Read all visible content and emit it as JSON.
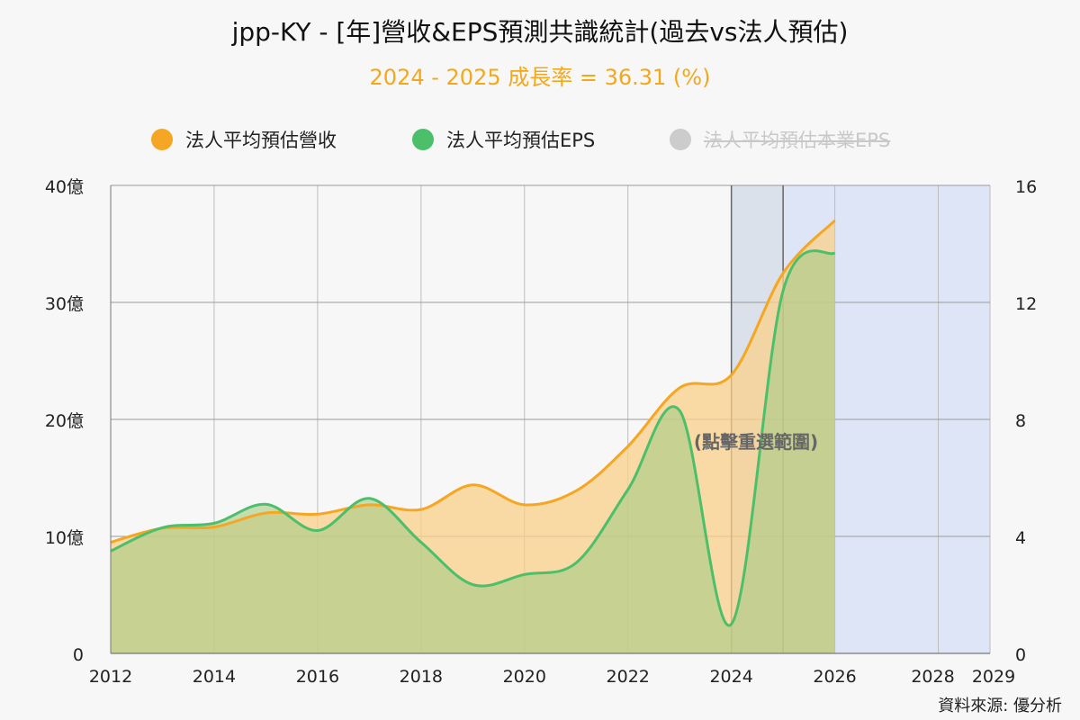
{
  "header": {
    "title": "jpp-KY - [年]營收&EPS預測共識統計(過去vs法人預估)",
    "subtitle": "2024 - 2025 成長率 = 36.31 (%)"
  },
  "legend": {
    "items": [
      {
        "label": "法人平均預估營收",
        "color": "#f5a623",
        "hidden": false
      },
      {
        "label": "法人平均預估EPS",
        "color": "#4cbf6b",
        "hidden": false
      },
      {
        "label": "法人平均預估本業EPS",
        "color": "#cccccc",
        "hidden": true
      }
    ]
  },
  "overlay_text": "(點擊重選範圍)",
  "source": "資料來源: 優分析",
  "chart_data": {
    "type": "area",
    "x_ticks": [
      "2012",
      "2014",
      "2016",
      "2018",
      "2020",
      "2022",
      "2024",
      "2026",
      "2028",
      "2029"
    ],
    "xlim": [
      2012,
      2029
    ],
    "y_left": {
      "ticks": [
        "0",
        "10億",
        "20億",
        "30億",
        "40億"
      ],
      "lim": [
        0,
        40
      ]
    },
    "y_right": {
      "ticks": [
        "0",
        "4",
        "8",
        "12",
        "16"
      ],
      "lim": [
        0,
        16
      ]
    },
    "grid": true,
    "legend_position": "top",
    "series": [
      {
        "name": "法人平均預估營收",
        "axis": "left",
        "color": "#f5a623",
        "x": [
          2012,
          2013,
          2014,
          2015,
          2016,
          2017,
          2018,
          2019,
          2020,
          2021,
          2022,
          2023,
          2024,
          2025,
          2026
        ],
        "values": [
          9.5,
          10.7,
          10.8,
          12.0,
          11.9,
          12.7,
          12.3,
          14.4,
          12.7,
          13.9,
          17.7,
          22.7,
          23.8,
          32.5,
          37.0
        ]
      },
      {
        "name": "法人平均預估EPS",
        "axis": "right",
        "color": "#4cbf6b",
        "x": [
          2012,
          2013,
          2014,
          2015,
          2016,
          2017,
          2018,
          2019,
          2020,
          2021,
          2022,
          2023,
          2024,
          2025,
          2026
        ],
        "values": [
          3.5,
          4.3,
          4.45,
          5.1,
          4.2,
          5.3,
          3.8,
          2.35,
          2.7,
          3.1,
          5.6,
          8.3,
          1.0,
          12.4,
          13.7
        ]
      }
    ],
    "regions": [
      {
        "from": 2024,
        "to": 2025,
        "style": "selected"
      },
      {
        "from": 2025,
        "to": 2029,
        "style": "forecast"
      }
    ]
  }
}
